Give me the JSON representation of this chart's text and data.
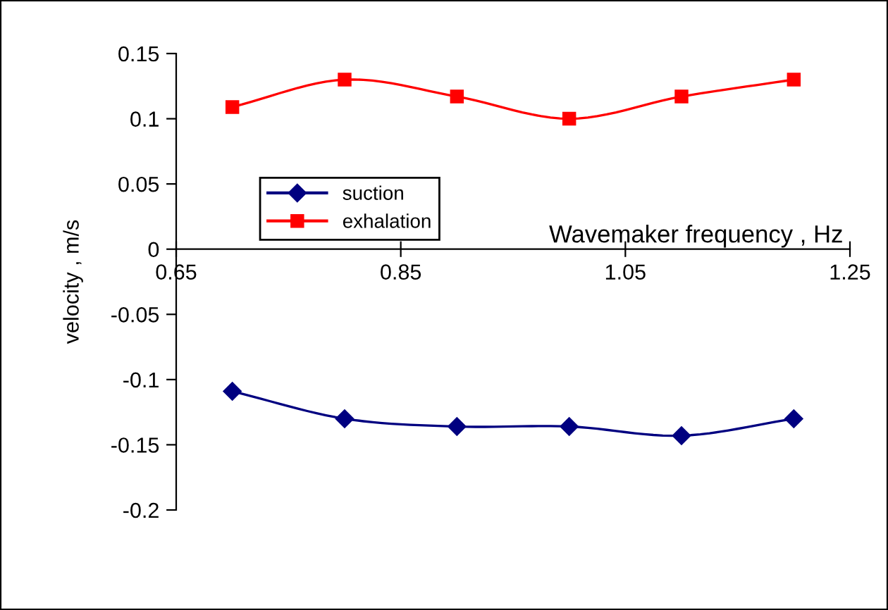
{
  "chart_data": {
    "type": "line",
    "xlabel": "Wavemaker frequency , Hz",
    "ylabel": "velocity , m/s",
    "x": [
      0.7,
      0.8,
      0.9,
      1.0,
      1.1,
      1.2
    ],
    "series": [
      {
        "name": "suction",
        "color": "#000080",
        "marker": "diamond",
        "values": [
          -0.109,
          -0.13,
          -0.136,
          -0.136,
          -0.143,
          -0.13
        ]
      },
      {
        "name": "exhalation",
        "color": "#ff0000",
        "marker": "square",
        "values": [
          0.109,
          0.13,
          0.117,
          0.1,
          0.117,
          0.13
        ]
      }
    ],
    "xlim": [
      0.65,
      1.25
    ],
    "xticks": [
      0.65,
      0.85,
      1.05,
      1.25
    ],
    "ylim": [
      -0.2,
      0.15
    ],
    "yticks": [
      -0.2,
      -0.15,
      -0.1,
      -0.05,
      0,
      0.05,
      0.1,
      0.15
    ],
    "grid": false,
    "legend": "center left",
    "line_style": "solid"
  }
}
